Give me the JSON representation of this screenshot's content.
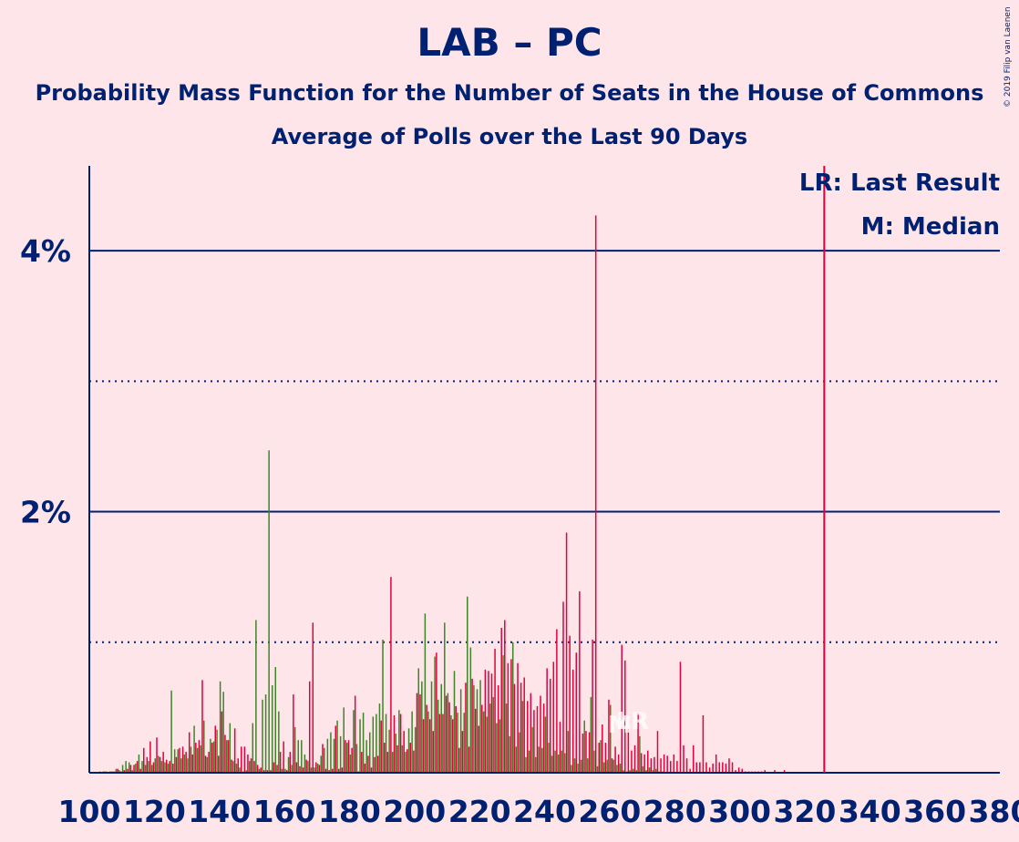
{
  "header": {
    "title": "LAB – PC",
    "subtitle": "Probability Mass Function for the Number of Seats in the House of Commons",
    "subtitle2": "Average of Polls over the Last 90 Days",
    "copyright": "© 2019 Filip van Laenen"
  },
  "legend": {
    "last_result": "LR: Last Result",
    "median": "M: Median"
  },
  "markers": {
    "median_label": "M",
    "last_result_label": "LR",
    "median_seat": 262,
    "last_result_seat": 326
  },
  "colors": {
    "background": "#fde5e9",
    "text": "#002171",
    "lab": "#e4003b",
    "pc": "#3f8428",
    "last_result_line": "#e4003b"
  },
  "chart_data": {
    "type": "bar",
    "xlim": [
      100,
      380
    ],
    "ylim": [
      0,
      4.65
    ],
    "x_ticks": [
      100,
      120,
      140,
      160,
      180,
      200,
      220,
      240,
      260,
      280,
      300,
      320,
      340,
      360,
      380
    ],
    "y_ticks": [
      {
        "value": 4,
        "label": "4%"
      },
      {
        "value": 2,
        "label": "2%"
      }
    ],
    "y_dotted": [
      1,
      3
    ],
    "legend_position": "top-right",
    "series": [
      {
        "name": "LAB",
        "color": "#e4003b",
        "start": 100,
        "values": [
          0,
          0,
          0,
          0,
          0,
          0.01,
          0,
          0.01,
          0.01,
          0.03,
          0.01,
          0.02,
          0.03,
          0.06,
          0.06,
          0.09,
          0.03,
          0.19,
          0.12,
          0.24,
          0.08,
          0.27,
          0.12,
          0.16,
          0.1,
          0.09,
          0.07,
          0.12,
          0.19,
          0.2,
          0.16,
          0.31,
          0.14,
          0.23,
          0.25,
          0.71,
          0.13,
          0.16,
          0.23,
          0.36,
          0.13,
          0.47,
          0.29,
          0.25,
          0.1,
          0.34,
          0.11,
          0.2,
          0.2,
          0.14,
          0.11,
          0.09,
          0.06,
          0.04,
          0.02,
          0.02,
          0.02,
          0.08,
          0.06,
          0.16,
          0.24,
          0.02,
          0.16,
          0.6,
          0.08,
          0.05,
          0.04,
          0.1,
          0.7,
          1.15,
          0.08,
          0.06,
          0.22,
          0.03,
          0.02,
          0.03,
          0.36,
          0.03,
          0.04,
          0.25,
          0.25,
          0.19,
          0.59,
          0.01,
          0.16,
          0.07,
          0.13,
          0.04,
          0.12,
          0.13,
          0.4,
          0.23,
          0.16,
          1.5,
          0.44,
          0.21,
          0.45,
          0.32,
          0.18,
          0.23,
          0.17,
          0.61,
          0.6,
          0.41,
          0.52,
          0.41,
          0.32,
          0.92,
          0.45,
          0.45,
          0.59,
          0.54,
          0.41,
          0.51,
          0.19,
          0.32,
          0.69,
          0.2,
          0.72,
          0.49,
          0.36,
          0.52,
          0.79,
          0.78,
          0.76,
          0.95,
          0.67,
          1.11,
          1.17,
          0.84,
          0.87,
          0.68,
          0.84,
          0.69,
          0.73,
          0.55,
          0.61,
          0.48,
          0.51,
          0.59,
          0.53,
          0.8,
          0.72,
          0.85,
          1.1,
          0.39,
          1.31,
          1.84,
          1.05,
          0.79,
          0.92,
          1.39,
          0.3,
          0.32,
          0.31,
          1.02,
          4.27,
          0.23,
          0.37,
          0.23,
          0.56,
          0.11,
          0.2,
          0.14,
          0.98,
          0.86,
          0.36,
          0.17,
          0.21,
          0.46,
          0.15,
          0.14,
          0.17,
          0.11,
          0.12,
          0.32,
          0.11,
          0.14,
          0.13,
          0.09,
          0.14,
          0.09,
          0.85,
          0.21,
          0.11,
          0.03,
          0.21,
          0.08,
          0.08,
          0.44,
          0.08,
          0.04,
          0.07,
          0.14,
          0.08,
          0.08,
          0.07,
          0.11,
          0.08,
          0.02,
          0.04,
          0.03,
          0.01,
          0.01,
          0.01,
          0.01,
          0.01,
          0.01,
          0.02,
          0,
          0,
          0.02,
          0,
          0,
          0.02,
          0,
          0,
          0,
          0,
          0,
          0
        ]
      },
      {
        "name": "PC",
        "color": "#3f8428",
        "start": 100,
        "values": [
          0,
          0,
          0,
          0.01,
          0.01,
          0.01,
          0.01,
          0.01,
          0.03,
          0.02,
          0.06,
          0.09,
          0.08,
          0.02,
          0.07,
          0.14,
          0.09,
          0.06,
          0.09,
          0.06,
          0.11,
          0.13,
          0.09,
          0.08,
          0.07,
          0.63,
          0.18,
          0.18,
          0.11,
          0.14,
          0.11,
          0.2,
          0.36,
          0.19,
          0.21,
          0.4,
          0.12,
          0.26,
          0.24,
          0.33,
          0.7,
          0.62,
          0.25,
          0.38,
          0.09,
          0.07,
          0.04,
          0.01,
          0.02,
          0.09,
          0.38,
          1.17,
          0.03,
          0.56,
          0.6,
          2.47,
          0.67,
          0.81,
          0.47,
          0.03,
          0.03,
          0.12,
          0.06,
          0.35,
          0.25,
          0.25,
          0.14,
          0.09,
          0.04,
          0.04,
          0.07,
          0.13,
          0.19,
          0.26,
          0.31,
          0.26,
          0.4,
          0.28,
          0.5,
          0.23,
          0.14,
          0.48,
          0.22,
          0.41,
          0.46,
          0.25,
          0.31,
          0.43,
          0.45,
          0.53,
          1.02,
          0.45,
          0.33,
          0.16,
          0.3,
          0.48,
          0.21,
          0.16,
          0.34,
          0.47,
          0.35,
          0.8,
          0.7,
          1.22,
          0.47,
          0.7,
          0.89,
          0.56,
          0.68,
          1.15,
          0.61,
          0.44,
          0.78,
          0.46,
          0.64,
          0.46,
          1.35,
          0.96,
          0.67,
          0.64,
          0.71,
          0.47,
          0.43,
          0.53,
          0.58,
          0.38,
          0.41,
          0.9,
          0.53,
          0.28,
          1.0,
          0.2,
          0.31,
          0.55,
          0.12,
          0.17,
          0.35,
          0.12,
          0.2,
          0.19,
          0.43,
          0.23,
          0.13,
          0.17,
          0.14,
          0.17,
          0.15,
          0.32,
          0.06,
          0.11,
          0.07,
          0.1,
          0.4,
          0.11,
          0.58,
          0.17,
          0.05,
          0.25,
          0.08,
          0.1,
          0.52,
          0.1,
          0.06,
          0.07,
          0.02,
          0.01,
          0.02,
          0.03,
          0.02,
          0.28,
          0.05,
          0.02,
          0.04,
          0.02,
          0.03,
          0.01,
          0.01,
          0,
          0,
          0,
          0,
          0,
          0,
          0,
          0,
          0
        ]
      }
    ]
  }
}
